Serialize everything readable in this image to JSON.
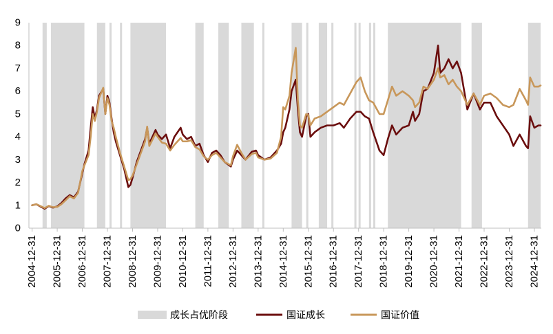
{
  "chart_data": {
    "type": "line",
    "xlim": [
      "2004-11-15",
      "2025-04-10"
    ],
    "ylim": [
      0,
      9
    ],
    "grid": false,
    "legend_position": "bottom",
    "y_ticks": [
      0,
      1,
      2,
      3,
      4,
      5,
      6,
      7,
      8,
      9
    ],
    "x_ticks": [
      "2004-12-31",
      "2005-12-31",
      "2006-12-31",
      "2007-12-31",
      "2008-12-31",
      "2009-12-31",
      "2010-12-31",
      "2011-12-31",
      "2012-12-31",
      "2013-12-31",
      "2014-12-31",
      "2015-12-31",
      "2016-12-31",
      "2017-12-31",
      "2018-12-31",
      "2019-12-31",
      "2020-12-31",
      "2021-12-31",
      "2022-12-31",
      "2023-12-31",
      "2024-12-31"
    ],
    "shaded_regions": {
      "label": "成长占优阶段",
      "color": "#d9d9d9",
      "ranges": [
        [
          "2005-05",
          "2005-07"
        ],
        [
          "2005-09",
          "2007-01"
        ],
        [
          "2007-07",
          "2007-11"
        ],
        [
          "2008-01",
          "2008-02"
        ],
        [
          "2008-06",
          "2008-07"
        ],
        [
          "2008-11",
          "2010-04"
        ],
        [
          "2011-06",
          "2011-10"
        ],
        [
          "2012-05",
          "2012-10"
        ],
        [
          "2013-04",
          "2013-10"
        ],
        [
          "2014-02",
          "2014-03"
        ],
        [
          "2015-04",
          "2015-09"
        ],
        [
          "2015-11",
          "2015-12"
        ],
        [
          "2016-05",
          "2016-09"
        ],
        [
          "2016-11",
          "2016-12"
        ],
        [
          "2017-10",
          "2017-11"
        ],
        [
          "2017-12",
          "2018-01"
        ],
        [
          "2018-05",
          "2018-06"
        ],
        [
          "2018-07",
          "2018-08"
        ],
        [
          "2019-02",
          "2022-01"
        ],
        [
          "2022-06",
          "2022-11"
        ],
        [
          "2024-09",
          "2025-03"
        ]
      ]
    },
    "x": [
      "2004-12",
      "2005-02",
      "2005-04",
      "2005-06",
      "2005-08",
      "2005-10",
      "2005-12",
      "2006-02",
      "2006-04",
      "2006-06",
      "2006-08",
      "2006-10",
      "2006-12",
      "2007-01",
      "2007-03",
      "2007-04",
      "2007-05",
      "2007-06",
      "2007-07",
      "2007-08",
      "2007-10",
      "2007-11",
      "2007-12",
      "2008-01",
      "2008-02",
      "2008-03",
      "2008-04",
      "2008-06",
      "2008-08",
      "2008-10",
      "2008-11",
      "2008-12",
      "2009-02",
      "2009-04",
      "2009-06",
      "2009-07",
      "2009-08",
      "2009-11",
      "2009-12",
      "2010-02",
      "2010-04",
      "2010-06",
      "2010-08",
      "2010-11",
      "2010-12",
      "2011-02",
      "2011-04",
      "2011-06",
      "2011-08",
      "2011-10",
      "2011-12",
      "2012-02",
      "2012-04",
      "2012-06",
      "2012-08",
      "2012-11",
      "2012-12",
      "2013-02",
      "2013-04",
      "2013-06",
      "2013-09",
      "2013-11",
      "2013-12",
      "2014-03",
      "2014-06",
      "2014-09",
      "2014-11",
      "2014-12",
      "2015-01",
      "2015-03",
      "2015-04",
      "2015-06",
      "2015-07",
      "2015-08",
      "2015-09",
      "2015-11",
      "2015-12",
      "2016-01",
      "2016-03",
      "2016-06",
      "2016-09",
      "2016-12",
      "2017-03",
      "2017-05",
      "2017-08",
      "2017-11",
      "2018-01",
      "2018-03",
      "2018-05",
      "2018-07",
      "2018-10",
      "2018-12",
      "2019-02",
      "2019-04",
      "2019-06",
      "2019-09",
      "2019-12",
      "2020-02",
      "2020-03",
      "2020-05",
      "2020-07",
      "2020-09",
      "2020-12",
      "2021-02",
      "2021-03",
      "2021-05",
      "2021-07",
      "2021-09",
      "2021-11",
      "2022-01",
      "2022-04",
      "2022-07",
      "2022-10",
      "2022-12",
      "2023-03",
      "2023-06",
      "2023-09",
      "2023-12",
      "2024-02",
      "2024-05",
      "2024-08",
      "2024-09",
      "2024-10",
      "2024-12",
      "2025-02",
      "2025-03"
    ],
    "series": [
      {
        "name": "国证成长",
        "color": "#6b0e0e",
        "values": [
          1.0,
          1.05,
          0.95,
          0.85,
          0.97,
          0.9,
          0.95,
          1.1,
          1.3,
          1.45,
          1.35,
          1.6,
          2.4,
          2.8,
          3.4,
          4.4,
          5.3,
          4.8,
          5.2,
          5.8,
          6.1,
          5.0,
          5.8,
          5.5,
          4.8,
          4.2,
          3.8,
          3.2,
          2.6,
          1.8,
          1.9,
          2.2,
          2.9,
          3.4,
          3.9,
          4.4,
          3.7,
          4.3,
          4.1,
          3.9,
          4.1,
          3.5,
          4.0,
          4.4,
          4.1,
          3.9,
          4.0,
          3.6,
          3.7,
          3.2,
          2.9,
          3.3,
          3.4,
          3.2,
          2.9,
          2.7,
          3.0,
          3.4,
          3.2,
          3.0,
          3.35,
          3.4,
          3.2,
          3.0,
          3.1,
          3.4,
          3.7,
          4.2,
          4.4,
          5.2,
          6.0,
          6.5,
          5.2,
          4.2,
          4.0,
          4.9,
          5.0,
          4.0,
          4.2,
          4.4,
          4.5,
          4.5,
          4.6,
          4.4,
          4.8,
          5.1,
          5.1,
          4.9,
          4.8,
          4.2,
          3.4,
          3.2,
          3.9,
          4.5,
          4.1,
          4.4,
          4.5,
          5.1,
          4.7,
          5.0,
          6.0,
          6.1,
          6.8,
          8.0,
          6.8,
          7.0,
          7.4,
          7.0,
          7.3,
          6.8,
          5.2,
          5.9,
          5.2,
          5.5,
          5.5,
          4.9,
          4.5,
          4.1,
          3.6,
          4.1,
          3.6,
          3.5,
          4.9,
          4.4,
          4.5,
          4.5
        ]
      },
      {
        "name": "国证价值",
        "color": "#c8975a",
        "values": [
          1.0,
          1.05,
          0.97,
          0.88,
          0.98,
          0.92,
          0.93,
          1.05,
          1.22,
          1.4,
          1.3,
          1.55,
          2.5,
          2.75,
          3.2,
          4.0,
          5.0,
          4.7,
          5.1,
          5.7,
          6.15,
          5.0,
          5.7,
          5.4,
          4.7,
          4.4,
          4.0,
          3.3,
          2.7,
          2.1,
          2.15,
          2.3,
          2.8,
          3.3,
          3.8,
          4.45,
          3.6,
          4.15,
          4.0,
          3.75,
          3.7,
          3.4,
          3.65,
          3.95,
          3.8,
          3.8,
          3.85,
          3.55,
          3.45,
          3.15,
          3.0,
          3.2,
          3.3,
          3.1,
          2.9,
          2.75,
          3.15,
          3.65,
          3.3,
          3.0,
          3.25,
          3.3,
          3.1,
          3.0,
          3.05,
          3.3,
          4.0,
          5.3,
          5.2,
          5.8,
          6.8,
          7.9,
          5.6,
          4.5,
          4.4,
          5.0,
          4.95,
          4.5,
          4.8,
          4.9,
          5.1,
          5.3,
          5.5,
          5.4,
          5.9,
          6.4,
          6.6,
          6.0,
          5.6,
          5.5,
          5.0,
          5.0,
          5.6,
          6.2,
          5.8,
          6.0,
          5.8,
          5.6,
          5.3,
          5.5,
          6.2,
          6.1,
          6.5,
          7.0,
          6.6,
          6.7,
          6.3,
          6.5,
          6.2,
          6.0,
          5.4,
          5.9,
          5.4,
          5.8,
          5.9,
          5.7,
          5.4,
          5.3,
          5.4,
          6.1,
          5.6,
          5.4,
          6.6,
          6.2,
          6.2,
          6.25
        ]
      }
    ]
  }
}
